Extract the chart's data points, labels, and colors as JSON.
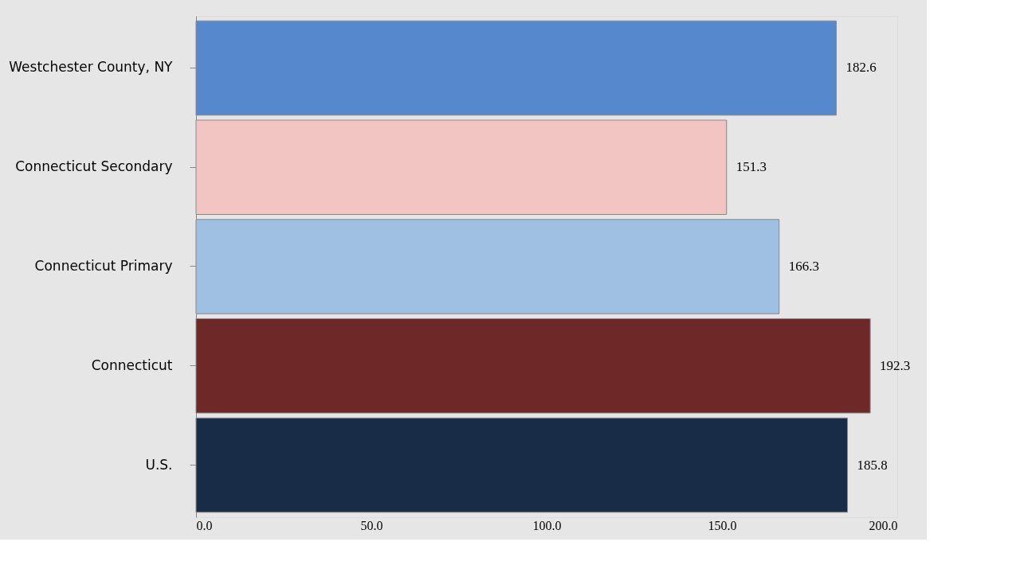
{
  "chart_data": {
    "type": "bar",
    "orientation": "horizontal",
    "categories": [
      "Westchester County, NY",
      "Connecticut Secondary",
      "Connecticut Primary",
      "Connecticut",
      "U.S."
    ],
    "values": [
      182.6,
      151.3,
      166.3,
      192.3,
      185.8
    ],
    "colors": [
      "#5588cc",
      "#f2c4c2",
      "#9fbfe3",
      "#6e2828",
      "#182c48"
    ],
    "xlim": [
      0,
      200
    ],
    "xticks": [
      {
        "value": 0,
        "label": "0.0"
      },
      {
        "value": 50,
        "label": "50.0"
      },
      {
        "value": 100,
        "label": "100.0"
      },
      {
        "value": 150,
        "label": "150.0"
      },
      {
        "value": 200,
        "label": "200.0"
      }
    ],
    "data_labels": true,
    "grid": false
  }
}
